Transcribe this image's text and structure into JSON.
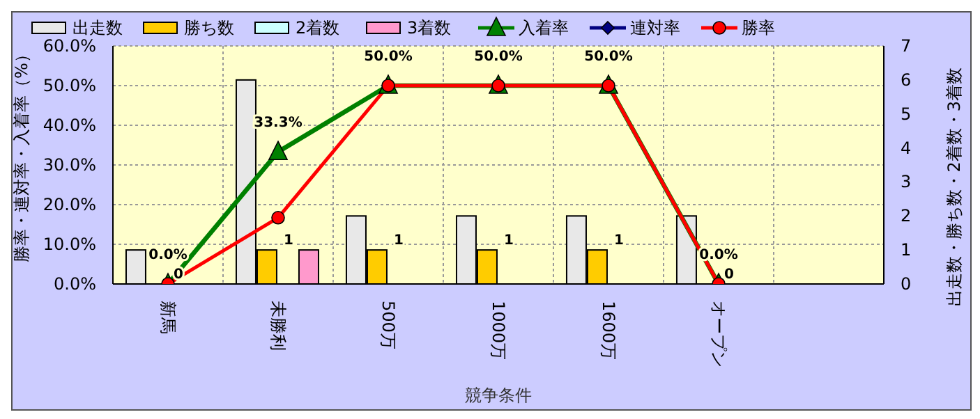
{
  "chart_data": {
    "type": "bar",
    "xlabel": "競争条件",
    "ylabel": "勝率・連対率・入着率（%）",
    "y2label": "出走数・勝ち数・2着数・3着数",
    "categories": [
      "新馬",
      "未勝利",
      "500万",
      "1000万",
      "1600万",
      "オープン",
      null
    ],
    "series": [
      {
        "name": "出走数",
        "axis": "y2",
        "color": "#e8e8e8",
        "values": [
          1,
          6,
          2,
          2,
          2,
          2,
          null
        ]
      },
      {
        "name": "勝ち数",
        "axis": "y2",
        "color": "#ffcc00",
        "values": [
          0,
          1,
          1,
          1,
          1,
          0,
          null
        ],
        "value_labels": [
          "0",
          "1",
          "1",
          "1",
          "1",
          "0",
          null
        ]
      },
      {
        "name": "2着数",
        "axis": "y2",
        "color": "#ccffff",
        "values": [
          0,
          0,
          0,
          0,
          0,
          0,
          null
        ]
      },
      {
        "name": "3着数",
        "axis": "y2",
        "color": "#ff99cc",
        "values": [
          0,
          1,
          0,
          0,
          0,
          0,
          null
        ]
      },
      {
        "name": "入着率",
        "type": "line",
        "color": "#008000",
        "marker": "triangle",
        "values": [
          0,
          33.3,
          50,
          50,
          50,
          0,
          null
        ],
        "value_labels": [
          "0.0%",
          "33.3%",
          "50.0%",
          "50.0%",
          "50.0%",
          "0.0%",
          null
        ]
      },
      {
        "name": "連対率",
        "type": "line",
        "color": "#000080",
        "marker": "diamond",
        "values": [
          null,
          null,
          null,
          null,
          null,
          null,
          null
        ]
      },
      {
        "name": "勝率",
        "type": "line",
        "color": "#ff0000",
        "marker": "circle",
        "values": [
          0,
          16.7,
          50,
          50,
          50,
          0,
          null
        ]
      }
    ],
    "ylim": [
      0,
      60
    ],
    "yticks": [
      {
        "value": 0,
        "label": "0.0%"
      },
      {
        "value": 10,
        "label": "10.0%"
      },
      {
        "value": 20,
        "label": "20.0%"
      },
      {
        "value": 30,
        "label": "30.0%"
      },
      {
        "value": 40,
        "label": "40.0%"
      },
      {
        "value": 50,
        "label": "50.0%"
      },
      {
        "value": 60,
        "label": "60.0%"
      }
    ],
    "y2lim": [
      0,
      7
    ],
    "y2ticks": [
      0,
      1,
      2,
      3,
      4,
      5,
      6,
      7
    ],
    "grid": true,
    "legend": "top"
  }
}
